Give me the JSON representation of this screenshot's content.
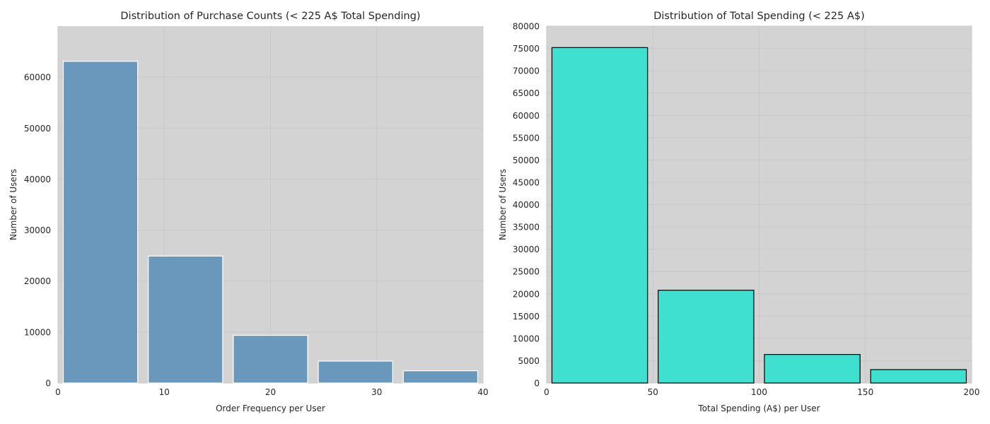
{
  "chart_data": [
    {
      "type": "bar",
      "title": "Distribution of Purchase Counts (< 225 A$ Total Spending)",
      "xlabel": "Order Frequency per User",
      "ylabel": "Number of Users",
      "xlim": [
        0,
        40
      ],
      "ylim": [
        0,
        70000
      ],
      "xticks": [
        0,
        10,
        20,
        30,
        40
      ],
      "yticks": [
        0,
        10000,
        20000,
        30000,
        40000,
        50000,
        60000
      ],
      "bins": [
        {
          "x0": 0.5,
          "x1": 7.5,
          "value": 63100
        },
        {
          "x0": 8.5,
          "x1": 15.5,
          "value": 24900
        },
        {
          "x0": 16.5,
          "x1": 23.5,
          "value": 9350
        },
        {
          "x0": 24.5,
          "x1": 31.5,
          "value": 4300
        },
        {
          "x0": 32.5,
          "x1": 39.5,
          "value": 2400
        }
      ],
      "grid": true,
      "colors": {
        "background": "#d3d3d3",
        "bar": "#6a98bd",
        "bar_edge": "#ffffff",
        "grid": "#c8c8c8"
      }
    },
    {
      "type": "bar",
      "title": "Distribution of Total Spending (< 225 A$)",
      "xlabel": "Total Spending (A$) per User",
      "ylabel": "Number of Users",
      "xlim": [
        0,
        200
      ],
      "ylim": [
        0,
        80000
      ],
      "xticks": [
        0,
        50,
        100,
        150,
        200
      ],
      "yticks": [
        0,
        5000,
        10000,
        15000,
        20000,
        25000,
        30000,
        35000,
        40000,
        45000,
        50000,
        55000,
        60000,
        65000,
        70000,
        75000,
        80000
      ],
      "bins": [
        {
          "x0": 2.5,
          "x1": 47.5,
          "value": 75200
        },
        {
          "x0": 52.5,
          "x1": 97.5,
          "value": 20800
        },
        {
          "x0": 102.5,
          "x1": 147.5,
          "value": 6400
        },
        {
          "x0": 152.5,
          "x1": 197.5,
          "value": 3000
        }
      ],
      "grid": true,
      "colors": {
        "background": "#d3d3d3",
        "bar": "#40e0d0",
        "bar_edge": "#000000",
        "grid": "#c8c8c8"
      }
    }
  ]
}
